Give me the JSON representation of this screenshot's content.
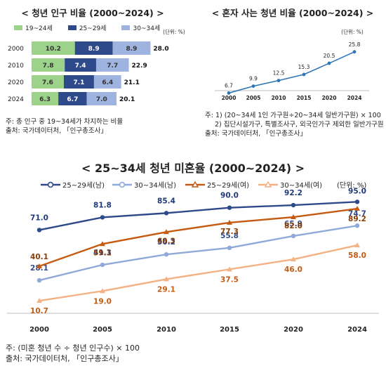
{
  "chart_data": [
    {
      "type": "bar",
      "stacked": true,
      "orientation": "horizontal",
      "title": "< 청년 인구 비율 (2000~2024) >",
      "unit_label": "(단위: %)",
      "categories": [
        "2000",
        "2010",
        "2020",
        "2024"
      ],
      "series": [
        {
          "name": "19~24세",
          "color": "#9dd28b",
          "values": [
            10.2,
            7.8,
            7.6,
            6.3
          ]
        },
        {
          "name": "25~29세",
          "color": "#2f4a8a",
          "values": [
            8.9,
            7.4,
            7.1,
            6.7
          ]
        },
        {
          "name": "30~34세",
          "color": "#9fb3e0",
          "values": [
            8.9,
            7.7,
            6.4,
            7.0
          ]
        }
      ],
      "totals": [
        28.0,
        22.9,
        21.1,
        20.1
      ],
      "notes": [
        "주: 총 인구 중 19~34세가 차지하는 비율",
        "출처: 국가데이터처, 「인구총조사」"
      ]
    },
    {
      "type": "line",
      "title": "< 혼자 사는 청년 비율 (2000~2024) >",
      "unit_label": "(단위: %)",
      "categories": [
        "2000",
        "2005",
        "2010",
        "2015",
        "2020",
        "2024"
      ],
      "series": [
        {
          "name": "",
          "color": "#2e75b6",
          "values": [
            6.7,
            9.9,
            12.5,
            15.3,
            20.5,
            25.8
          ]
        }
      ],
      "notes": [
        "주: 1) (20~34세 1인 가구원÷20~34세 일반가구원) × 100",
        "2) 집단시설가구, 특별조사구, 외국인가구 제외한 일반가구원",
        "출처: 국가데이터처, 「인구총조사」"
      ]
    },
    {
      "type": "line",
      "title": "< 25~34세 청년 미혼율 (2000~2024) >",
      "unit_label": "(단위: %)",
      "categories": [
        "2000",
        "2005",
        "2010",
        "2015",
        "2020",
        "2024"
      ],
      "ylim": [
        0,
        100
      ],
      "series": [
        {
          "name": "25~29세(남)",
          "color": "#2f4a8a",
          "marker": "circle",
          "label_color": "#1f3a78",
          "values": [
            71.0,
            81.8,
            85.4,
            90.0,
            92.2,
            95.0
          ]
        },
        {
          "name": "30~34세(남)",
          "color": "#8fa9d8",
          "marker": "circle",
          "label_color": "#2f4a8a",
          "values": [
            28.1,
            41.3,
            50.2,
            55.8,
            65.9,
            74.7
          ]
        },
        {
          "name": "25~29세(여)",
          "color": "#c55a11",
          "marker": "triangle",
          "label_color": "#8a3d05",
          "values": [
            40.1,
            59.1,
            69.3,
            77.3,
            82.0,
            89.2
          ]
        },
        {
          "name": "30~34세(여)",
          "color": "#f4b183",
          "marker": "triangle",
          "label_color": "#c55a11",
          "values": [
            10.7,
            19.0,
            29.1,
            37.5,
            46.0,
            58.0
          ]
        }
      ],
      "notes": [
        "주: (미혼 청년 수 ÷ 청년 인구수) × 100",
        "출처: 국가데이터처, 「인구총조사」"
      ]
    }
  ]
}
